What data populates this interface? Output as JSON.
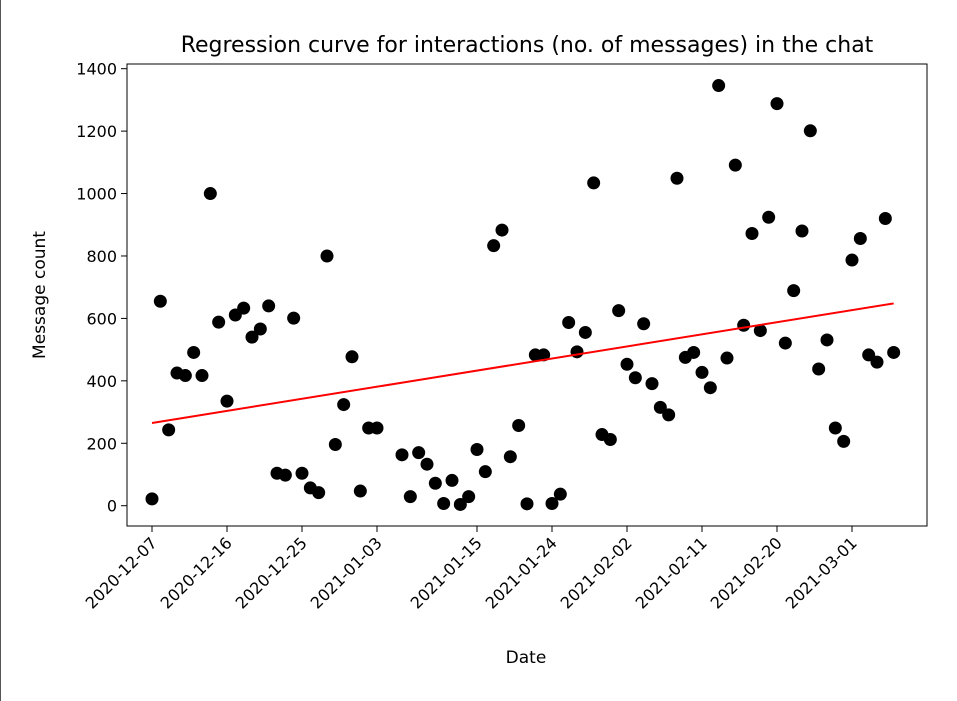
{
  "chart_data": {
    "type": "scatter",
    "title": "Regression curve for interactions (no. of messages) in the chat",
    "xlabel": "Date",
    "ylabel": "Message count",
    "ylim": [
      -65,
      1415
    ],
    "xlim": [
      "2020-12-04",
      "2021-03-10"
    ],
    "yticks": [
      0,
      200,
      400,
      600,
      800,
      1000,
      1200,
      1400
    ],
    "xticks": [
      "2020-12-07",
      "2020-12-16",
      "2020-12-25",
      "2021-01-03",
      "2021-01-15",
      "2021-01-24",
      "2021-02-02",
      "2021-02-11",
      "2021-02-20",
      "2021-03-01"
    ],
    "grid": false,
    "point_color": "#000000",
    "regression_color": "#ff0000",
    "series": [
      {
        "type": "scatter",
        "x": [
          "2020-12-07",
          "2020-12-08",
          "2020-12-09",
          "2020-12-10",
          "2020-12-11",
          "2020-12-12",
          "2020-12-13",
          "2020-12-14",
          "2020-12-15",
          "2020-12-16",
          "2020-12-17",
          "2020-12-18",
          "2020-12-19",
          "2020-12-20",
          "2020-12-21",
          "2020-12-22",
          "2020-12-23",
          "2020-12-24",
          "2020-12-25",
          "2020-12-26",
          "2020-12-27",
          "2020-12-28",
          "2020-12-29",
          "2020-12-30",
          "2020-12-31",
          "2021-01-01",
          "2021-01-02",
          "2021-01-03",
          "2021-01-06",
          "2021-01-07",
          "2021-01-08",
          "2021-01-09",
          "2021-01-10",
          "2021-01-11",
          "2021-01-12",
          "2021-01-13",
          "2021-01-14",
          "2021-01-15",
          "2021-01-16",
          "2021-01-17",
          "2021-01-18",
          "2021-01-19",
          "2021-01-20",
          "2021-01-21",
          "2021-01-22",
          "2021-01-23",
          "2021-01-24",
          "2021-01-25",
          "2021-01-26",
          "2021-01-27",
          "2021-01-28",
          "2021-01-29",
          "2021-01-30",
          "2021-01-31",
          "2021-02-01",
          "2021-02-02",
          "2021-02-03",
          "2021-02-04",
          "2021-02-05",
          "2021-02-06",
          "2021-02-07",
          "2021-02-08",
          "2021-02-09",
          "2021-02-10",
          "2021-02-11",
          "2021-02-12",
          "2021-02-13",
          "2021-02-14",
          "2021-02-15",
          "2021-02-16",
          "2021-02-17",
          "2021-02-18",
          "2021-02-19",
          "2021-02-20",
          "2021-02-21",
          "2021-02-22",
          "2021-02-23",
          "2021-02-24",
          "2021-02-25",
          "2021-02-26",
          "2021-02-27",
          "2021-02-28",
          "2021-03-01",
          "2021-03-02",
          "2021-03-03",
          "2021-03-04",
          "2021-03-05",
          "2021-03-06"
        ],
        "y": [
          22,
          655,
          243,
          425,
          417,
          491,
          417,
          1000,
          588,
          335,
          611,
          633,
          540,
          566,
          640,
          104,
          98,
          601,
          104,
          57,
          42,
          800,
          196,
          324,
          477,
          47,
          249,
          249,
          163,
          29,
          170,
          133,
          72,
          7,
          81,
          4,
          29,
          180,
          109,
          833,
          883,
          157,
          257,
          6,
          483,
          483,
          7,
          37,
          587,
          493,
          555,
          1034,
          228,
          212,
          625,
          453,
          410,
          583,
          391,
          315,
          291,
          1049,
          475,
          491,
          427,
          378,
          1346,
          473,
          1091,
          578,
          872,
          561,
          924,
          1288,
          521,
          689,
          880,
          1201,
          438,
          531,
          249,
          206,
          787,
          856,
          483,
          460,
          920,
          491
        ]
      },
      {
        "type": "line",
        "name": "regression",
        "x": [
          "2020-12-07",
          "2021-03-06"
        ],
        "y": [
          265,
          648
        ]
      }
    ]
  }
}
